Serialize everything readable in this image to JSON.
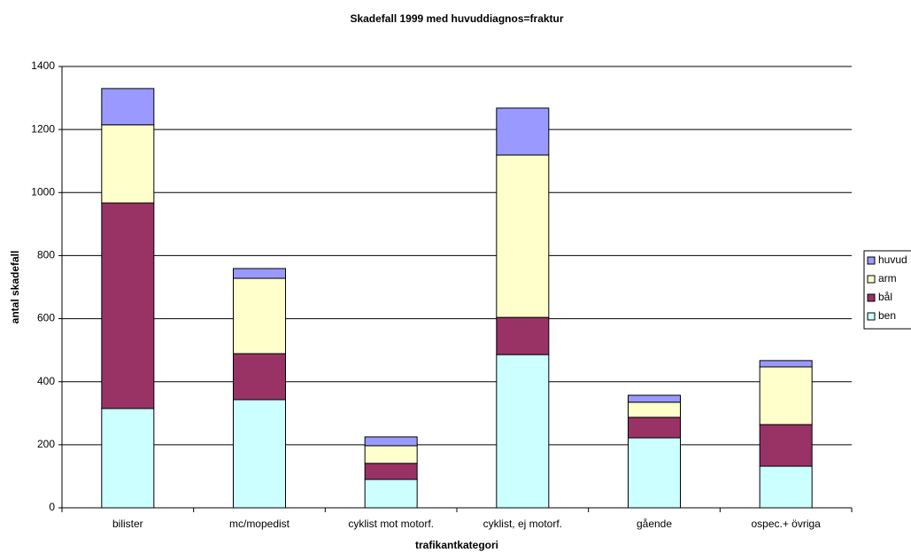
{
  "chart_data": {
    "type": "stacked-bar",
    "title": "Skadefall 1999 med huvuddiagnos=fraktur",
    "x_label": "trafikantkategori",
    "y_label": "antal skadefall",
    "categories": [
      "bilister",
      "mc/mopedist",
      "cyklist mot motorf.",
      "cyklist, ej motorf.",
      "gående",
      "ospec.+ övriga"
    ],
    "series": [
      {
        "name": "ben",
        "color": "#ccffff",
        "values": [
          315,
          343,
          90,
          486,
          222,
          132
        ]
      },
      {
        "name": "bål",
        "color": "#993366",
        "values": [
          652,
          146,
          51,
          118,
          65,
          132
        ]
      },
      {
        "name": "arm",
        "color": "#ffffcc",
        "values": [
          248,
          239,
          56,
          515,
          48,
          183
        ]
      },
      {
        "name": "huvud",
        "color": "#9999ff",
        "values": [
          115,
          31,
          28,
          149,
          22,
          20
        ]
      }
    ],
    "ylim": [
      0,
      1400
    ],
    "yticks": [
      0,
      200,
      400,
      600,
      800,
      1000,
      1200,
      1400
    ],
    "grid": true,
    "legend": "right"
  }
}
